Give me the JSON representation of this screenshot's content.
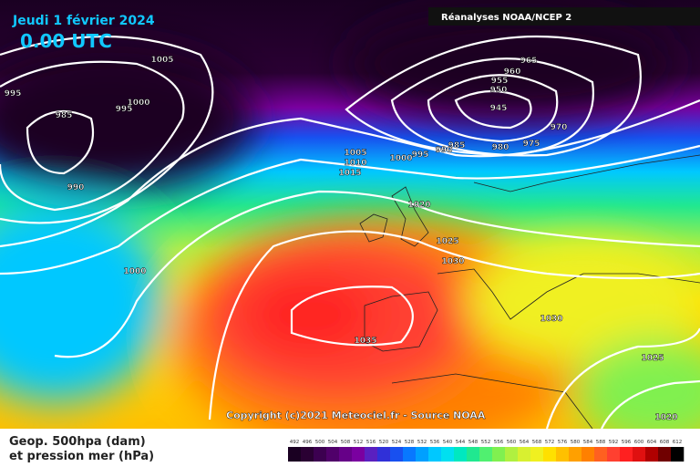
{
  "header": {
    "title": "Jeudi 1 février 2024",
    "time": "0.00 UTC",
    "source": "Réanalyses NOAA/NCEP 2"
  },
  "copyright": "Copyright (c)2021 Meteociel.fr - Source NOAA",
  "legend": {
    "title_lines": [
      "Geop. 500hpa (dam)",
      "et pression mer (hPa)"
    ],
    "labels": [
      492,
      496,
      500,
      504,
      508,
      512,
      516,
      520,
      524,
      528,
      532,
      536,
      540,
      544,
      548,
      552,
      556,
      560,
      564,
      568,
      572,
      576,
      580,
      584,
      588,
      592,
      596,
      600,
      604,
      608,
      612
    ],
    "colors": [
      "#1a0022",
      "#2a0033",
      "#3c0050",
      "#50006a",
      "#660088",
      "#7a00a0",
      "#5a20c0",
      "#3030d8",
      "#1850f0",
      "#0878ff",
      "#00a0ff",
      "#00c8ff",
      "#00e0f0",
      "#00e8c0",
      "#20e890",
      "#50f070",
      "#80f050",
      "#b0f040",
      "#d8f030",
      "#f0f020",
      "#ffe000",
      "#ffc000",
      "#ffa000",
      "#ff8000",
      "#ff6020",
      "#ff4030",
      "#ff2020",
      "#e01010",
      "#b00000",
      "#700000",
      "#000000"
    ]
  },
  "isobar_labels": [
    1005,
    995,
    985,
    995,
    1000,
    990,
    1000,
    965,
    960,
    955,
    950,
    945,
    970,
    975,
    980,
    985,
    990,
    995,
    1000,
    1005,
    1010,
    1015,
    1020,
    1025,
    1030,
    1035,
    1030,
    1025,
    1020
  ]
}
